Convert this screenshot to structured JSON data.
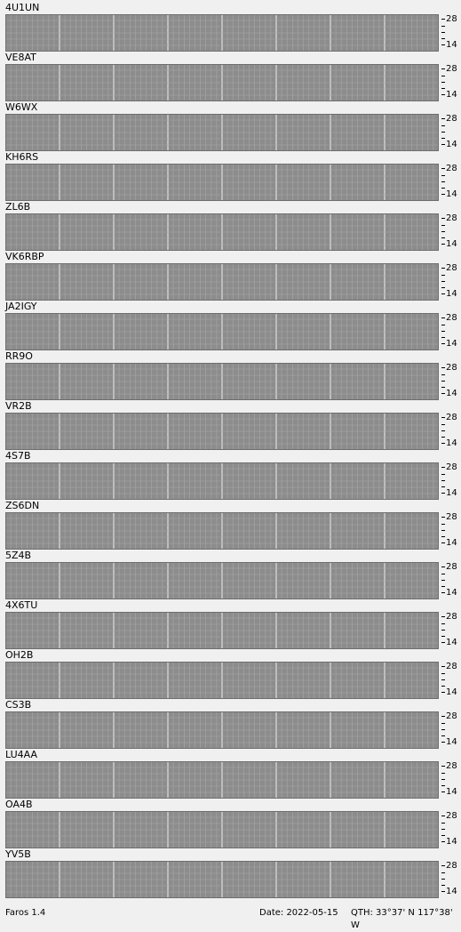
{
  "app": {
    "version_label": "Faros 1.4"
  },
  "footer": {
    "date_label": "Date: 2022-05-15",
    "qth_label": "QTH: 33°37' N  117°38' W"
  },
  "scale": {
    "top": "28",
    "bottom": "14"
  },
  "colors": {
    "background": "#8c8c8c",
    "grid": "#a8a8a8",
    "hour_line": "#d4d4d4",
    "cyan": "#9cf5f5",
    "green": "#9cf59c",
    "blue": "#86b6ff",
    "violet": "#8a8cff",
    "gray": "#b8b8b8",
    "yellow": "#e0f07c"
  },
  "beacons": [
    {
      "name": "4U1UN"
    },
    {
      "name": "VE8AT"
    },
    {
      "name": "W6WX"
    },
    {
      "name": "KH6RS"
    },
    {
      "name": "ZL6B"
    },
    {
      "name": "VK6RBP"
    },
    {
      "name": "JA2IGY"
    },
    {
      "name": "RR9O"
    },
    {
      "name": "VR2B"
    },
    {
      "name": "4S7B"
    },
    {
      "name": "ZS6DN"
    },
    {
      "name": "5Z4B"
    },
    {
      "name": "4X6TU"
    },
    {
      "name": "OH2B"
    },
    {
      "name": "CS3B"
    },
    {
      "name": "LU4AA"
    },
    {
      "name": "OA4B"
    },
    {
      "name": "YV5B"
    }
  ]
}
